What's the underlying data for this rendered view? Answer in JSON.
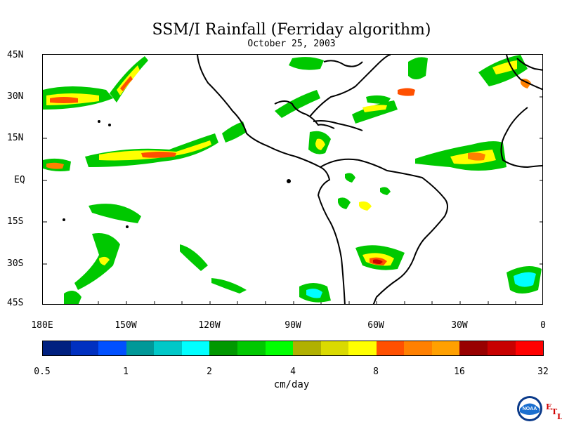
{
  "title": "SSM/I Rainfall (Ferriday algorithm)",
  "subtitle": "October 25, 2003",
  "lat_labels": [
    "45N",
    "30N",
    "15N",
    "EQ",
    "15S",
    "30S",
    "45S"
  ],
  "lon_labels": [
    "180E",
    "150W",
    "120W",
    "90W",
    "60W",
    "30W",
    "0"
  ],
  "colorbar": {
    "colors": [
      "#002080",
      "#0030c0",
      "#0050ff",
      "#009898",
      "#00c8c8",
      "#00ffff",
      "#009800",
      "#00c800",
      "#00ff00",
      "#b0b000",
      "#dada00",
      "#ffff00",
      "#ff5000",
      "#ff8000",
      "#ffa000",
      "#980000",
      "#c80000",
      "#ff0000"
    ],
    "tick_labels": [
      "0.5",
      "1",
      "2",
      "4",
      "8",
      "16",
      "32"
    ],
    "units": "cm/day"
  },
  "logo": {
    "text": "NOAA",
    "letters": [
      "E",
      "T",
      "L"
    ]
  },
  "legend_icon": "noaa-logo-icon"
}
